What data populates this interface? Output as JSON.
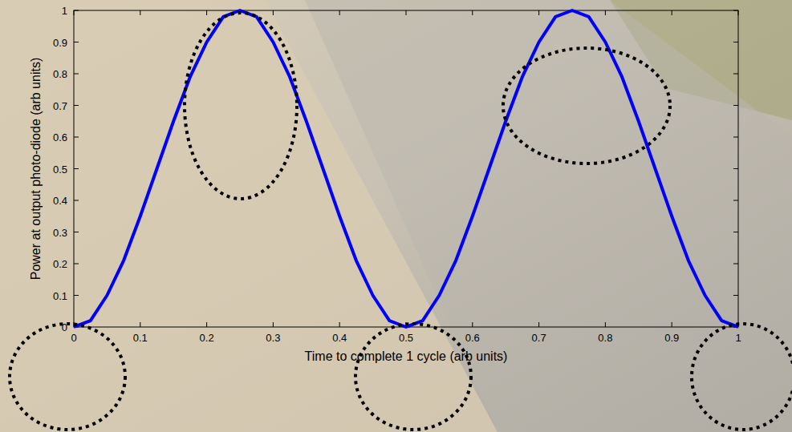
{
  "chart_data": {
    "type": "line",
    "xlabel": "Time to complete 1 cycle (arb units)",
    "ylabel": "Power at output photo-diode (arb units)",
    "x": [
      0,
      0.025,
      0.05,
      0.075,
      0.1,
      0.125,
      0.15,
      0.175,
      0.2,
      0.225,
      0.25,
      0.275,
      0.3,
      0.325,
      0.35,
      0.375,
      0.4,
      0.425,
      0.45,
      0.475,
      0.5,
      0.525,
      0.55,
      0.575,
      0.6,
      0.625,
      0.65,
      0.675,
      0.7,
      0.725,
      0.75,
      0.775,
      0.8,
      0.825,
      0.85,
      0.875,
      0.9,
      0.925,
      0.95,
      0.975,
      1
    ],
    "series": [
      {
        "color": "#0000ff",
        "line_style": "solid",
        "values": [
          0,
          0.02,
          0.1,
          0.21,
          0.35,
          0.5,
          0.65,
          0.79,
          0.9,
          0.98,
          1,
          0.98,
          0.9,
          0.79,
          0.65,
          0.5,
          0.35,
          0.21,
          0.1,
          0.02,
          0,
          0.02,
          0.1,
          0.21,
          0.35,
          0.5,
          0.65,
          0.79,
          0.9,
          0.98,
          1,
          0.98,
          0.9,
          0.79,
          0.65,
          0.5,
          0.35,
          0.21,
          0.1,
          0.02,
          0
        ]
      }
    ],
    "xlim": [
      0,
      1
    ],
    "ylim": [
      0,
      1
    ],
    "xticks": [
      0,
      0.1,
      0.2,
      0.3,
      0.4,
      0.5,
      0.6,
      0.7,
      0.8,
      0.9,
      1
    ],
    "yticks": [
      0,
      0.1,
      0.2,
      0.3,
      0.4,
      0.5,
      0.6,
      0.7,
      0.8,
      0.9,
      1
    ],
    "grid": false
  }
}
